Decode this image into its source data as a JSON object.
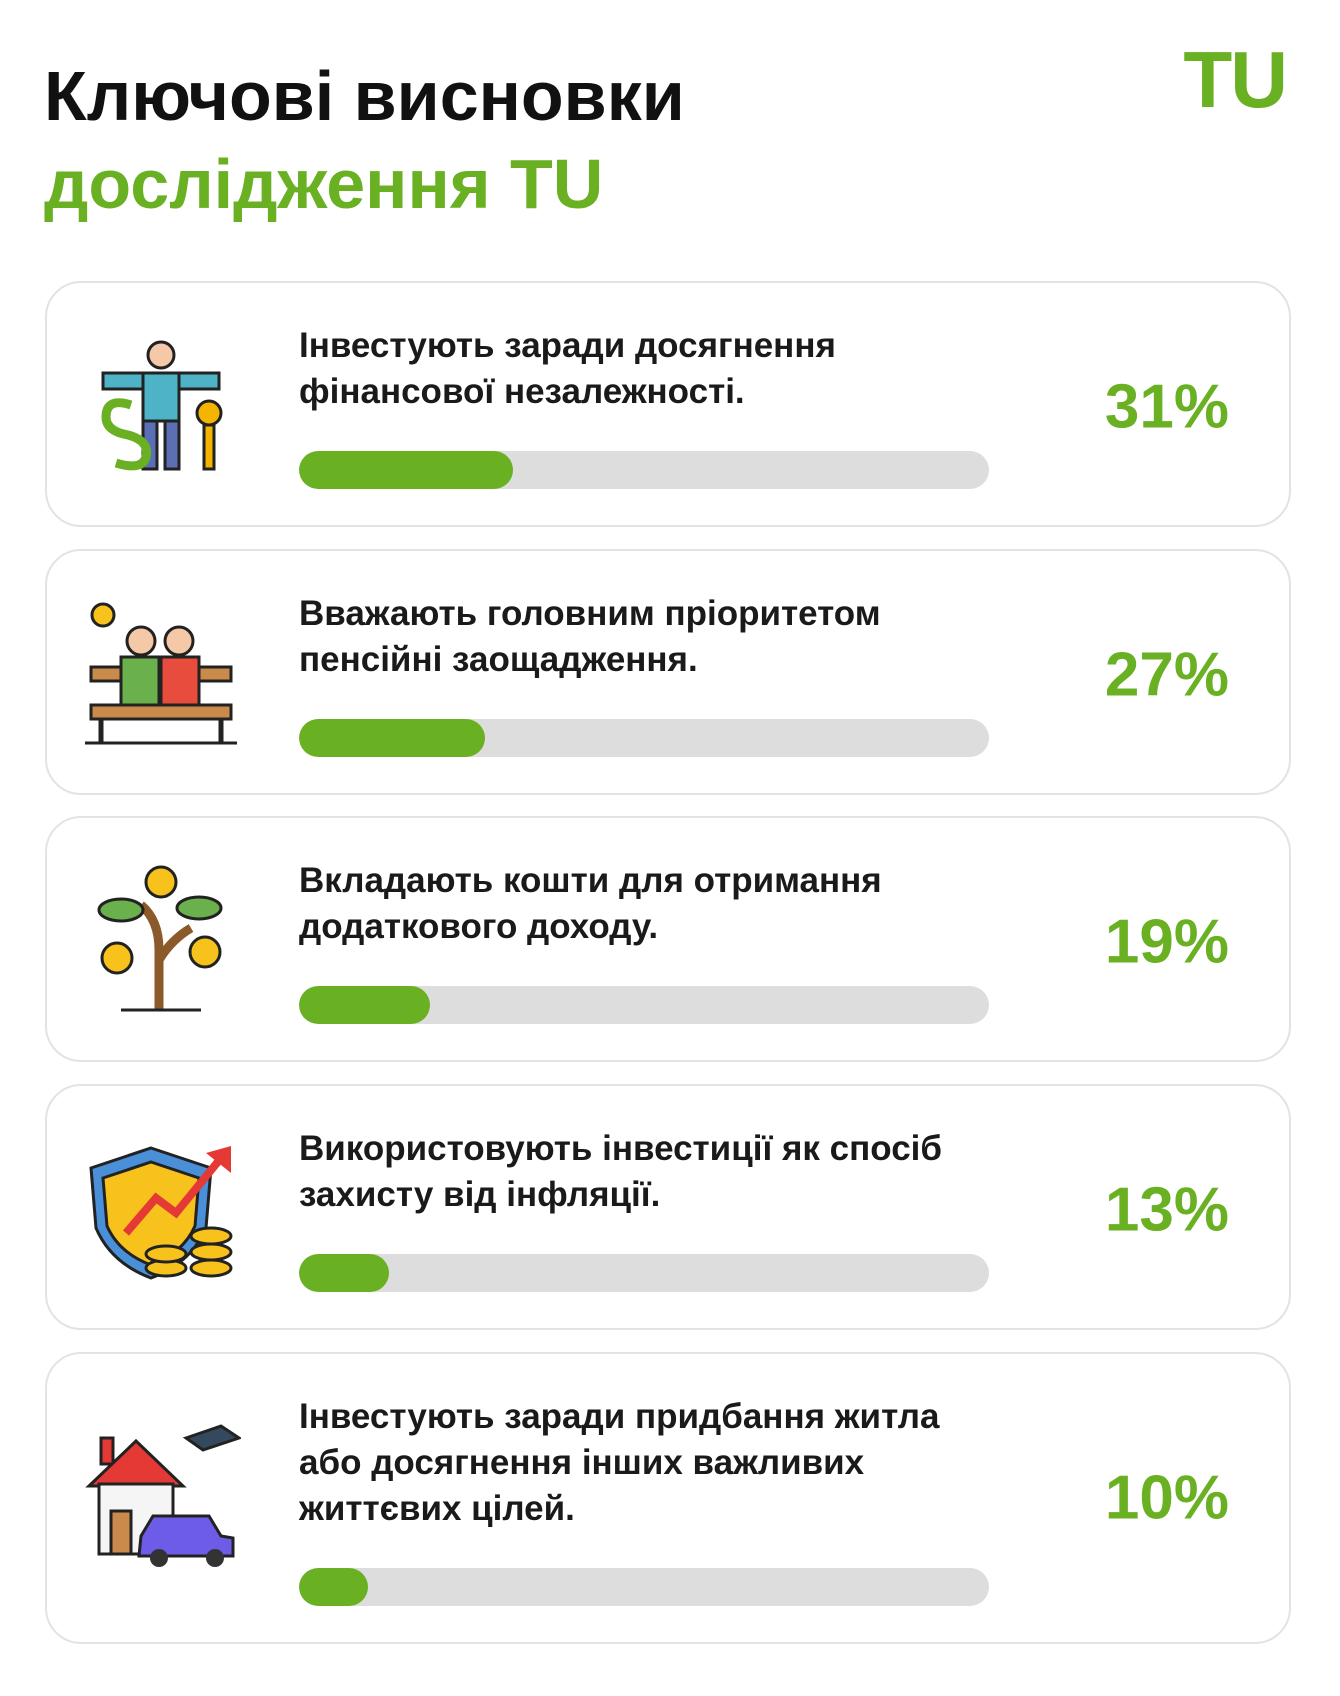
{
  "header": {
    "title_line1": "Ключові висновки",
    "title_line2": "дослідження TU",
    "logo": "TU"
  },
  "chart_data": {
    "type": "bar",
    "orientation": "horizontal",
    "categories": [
      "Інвестують заради досягнення фінансової незалежності.",
      "Вважають головним пріоритетом пенсійні заощадження.",
      "Вкладають кошти для отримання додаткового доходу.",
      "Використовують інвестиції як спосіб захисту від інфляції.",
      "Інвестують заради придбання житла або досягнення інших важливих життєвих цілей."
    ],
    "values": [
      31,
      27,
      19,
      13,
      10
    ],
    "value_labels": [
      "31%",
      "27%",
      "19%",
      "13%",
      "10%"
    ],
    "xlim": [
      0,
      100
    ],
    "color": "#6ab023"
  }
}
